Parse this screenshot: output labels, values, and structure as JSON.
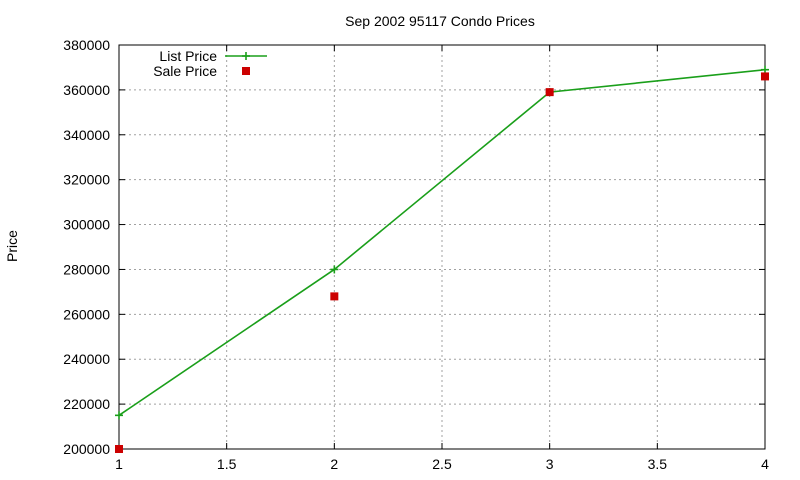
{
  "chart_data": {
    "type": "line",
    "title": "Sep 2002 95117 Condo Prices",
    "xlabel": "",
    "ylabel": "Price",
    "xlim": [
      1,
      4
    ],
    "ylim": [
      200000,
      380000
    ],
    "x_ticks": [
      "1",
      "1.5",
      "2",
      "2.5",
      "3",
      "3.5",
      "4"
    ],
    "y_ticks": [
      "200000",
      "220000",
      "240000",
      "260000",
      "280000",
      "300000",
      "320000",
      "340000",
      "360000",
      "380000"
    ],
    "grid": true,
    "legend_position": "top-left",
    "series": [
      {
        "name": "List Price",
        "style": "linespoints",
        "color": "#1a9f1a",
        "x": [
          1,
          2,
          3,
          4
        ],
        "y": [
          215000,
          280000,
          359000,
          369000
        ]
      },
      {
        "name": "Sale Price",
        "style": "points",
        "color": "#cc0000",
        "x": [
          1,
          2,
          3,
          4
        ],
        "y": [
          200000,
          268000,
          359000,
          366000
        ]
      }
    ]
  }
}
